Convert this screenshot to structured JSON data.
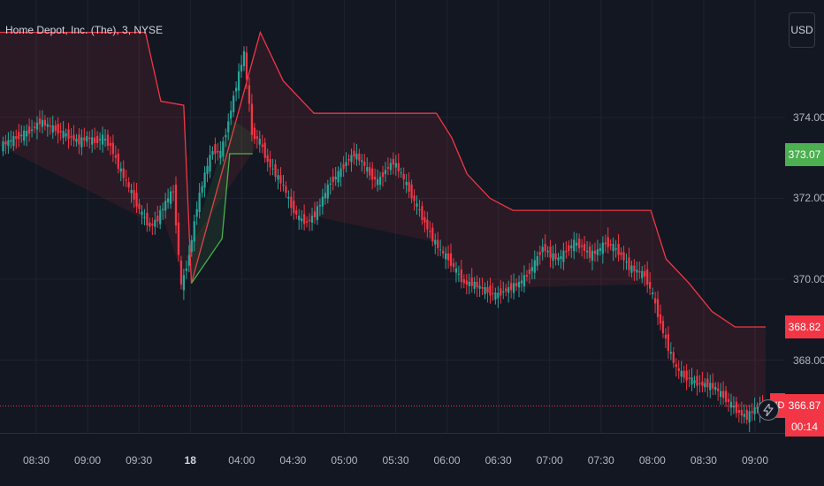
{
  "header": {
    "ticker_label": "Home Depot, Inc. (The), 3, NYSE"
  },
  "currency_button": {
    "label": "USD"
  },
  "colors": {
    "up": "#26a69a",
    "down": "#f23645",
    "band_red": "#f23645",
    "band_green": "#4caf50",
    "background": "#131722",
    "grid": "#1f2330"
  },
  "price_axis": {
    "ticks": [
      "374.00",
      "372.00",
      "370.00",
      "368.00"
    ],
    "tick_values": [
      374,
      372,
      370,
      368
    ]
  },
  "badges": {
    "green": {
      "label": "373.07",
      "value": 373.07,
      "color": "#4caf50"
    },
    "upper_band": {
      "label": "368.82",
      "value": 368.82,
      "color": "#f23645"
    },
    "last_price": {
      "label": "366.87",
      "value": 366.87,
      "color": "#f23645"
    },
    "symbol_tag": "HD",
    "countdown": "00:14"
  },
  "time_axis": {
    "ticks": [
      {
        "label": "08:30",
        "bold": false
      },
      {
        "label": "09:00",
        "bold": false
      },
      {
        "label": "09:30",
        "bold": false
      },
      {
        "label": "18",
        "bold": true
      },
      {
        "label": "04:00",
        "bold": false
      },
      {
        "label": "04:30",
        "bold": false
      },
      {
        "label": "05:00",
        "bold": false
      },
      {
        "label": "05:30",
        "bold": false
      },
      {
        "label": "06:00",
        "bold": false
      },
      {
        "label": "06:30",
        "bold": false
      },
      {
        "label": "07:00",
        "bold": false
      },
      {
        "label": "07:30",
        "bold": false
      },
      {
        "label": "08:00",
        "bold": false
      },
      {
        "label": "08:30",
        "bold": false
      },
      {
        "label": "09:00",
        "bold": false
      }
    ]
  },
  "chart_data": {
    "type": "candlestick",
    "title": "Home Depot, Inc. (The), 3, NYSE",
    "ylim": [
      366.2,
      376.9
    ],
    "x_ticks": [
      "08:30",
      "09:00",
      "09:30",
      "18",
      "04:00",
      "04:30",
      "05:00",
      "05:30",
      "06:00",
      "06:30",
      "07:00",
      "07:30",
      "08:00",
      "08:30",
      "09:00"
    ],
    "y_ticks": [
      374,
      372,
      370,
      368
    ],
    "last_price": 366.87,
    "price_path": [
      373.3,
      373.4,
      373.5,
      373.6,
      373.7,
      373.9,
      373.8,
      373.7,
      373.6,
      373.5,
      373.4,
      373.5,
      373.4,
      373.5,
      373.3,
      372.8,
      372.4,
      372.0,
      371.6,
      371.3,
      371.5,
      371.9,
      372.2,
      369.8,
      370.6,
      371.8,
      372.6,
      373.2,
      373.1,
      373.9,
      374.8,
      375.6,
      373.6,
      373.4,
      372.9,
      372.6,
      372.3,
      371.8,
      371.5,
      371.4,
      371.6,
      372.0,
      372.4,
      372.6,
      372.9,
      373.1,
      372.9,
      372.6,
      372.4,
      372.7,
      372.9,
      372.6,
      372.2,
      371.8,
      371.4,
      371.0,
      370.7,
      370.5,
      370.2,
      369.9,
      369.9,
      369.8,
      369.7,
      369.6,
      369.7,
      369.8,
      369.9,
      370.1,
      370.4,
      370.8,
      370.6,
      370.5,
      370.7,
      370.9,
      370.8,
      370.6,
      370.7,
      370.9,
      370.8,
      370.6,
      370.3,
      370.2,
      370.1,
      369.6,
      368.9,
      368.3,
      367.8,
      367.6,
      367.5,
      367.4,
      367.4,
      367.3,
      367.1,
      366.9,
      366.7,
      366.6,
      366.8,
      366.9
    ],
    "upper_band": [
      {
        "t": 0,
        "v": 376.1
      },
      {
        "t": 0.19,
        "v": 376.1
      },
      {
        "t": 0.21,
        "v": 374.4
      },
      {
        "t": 0.24,
        "v": 374.3
      },
      {
        "t": 0.25,
        "v": 369.9
      },
      {
        "t": 0.34,
        "v": 376.1
      },
      {
        "t": 0.37,
        "v": 374.9
      },
      {
        "t": 0.4,
        "v": 374.3
      },
      {
        "t": 0.41,
        "v": 374.1
      },
      {
        "t": 0.57,
        "v": 374.1
      },
      {
        "t": 0.59,
        "v": 373.5
      },
      {
        "t": 0.61,
        "v": 372.6
      },
      {
        "t": 0.64,
        "v": 372.0
      },
      {
        "t": 0.67,
        "v": 371.7
      },
      {
        "t": 0.85,
        "v": 371.7
      },
      {
        "t": 0.87,
        "v": 370.5
      },
      {
        "t": 0.9,
        "v": 369.9
      },
      {
        "t": 0.93,
        "v": 369.2
      },
      {
        "t": 0.96,
        "v": 368.82
      },
      {
        "t": 1.0,
        "v": 368.82
      }
    ],
    "lower_band": [
      {
        "t": 0.25,
        "v": 369.9
      },
      {
        "t": 0.29,
        "v": 371.0
      },
      {
        "t": 0.3,
        "v": 373.1
      },
      {
        "t": 0.33,
        "v": 373.1
      }
    ]
  }
}
